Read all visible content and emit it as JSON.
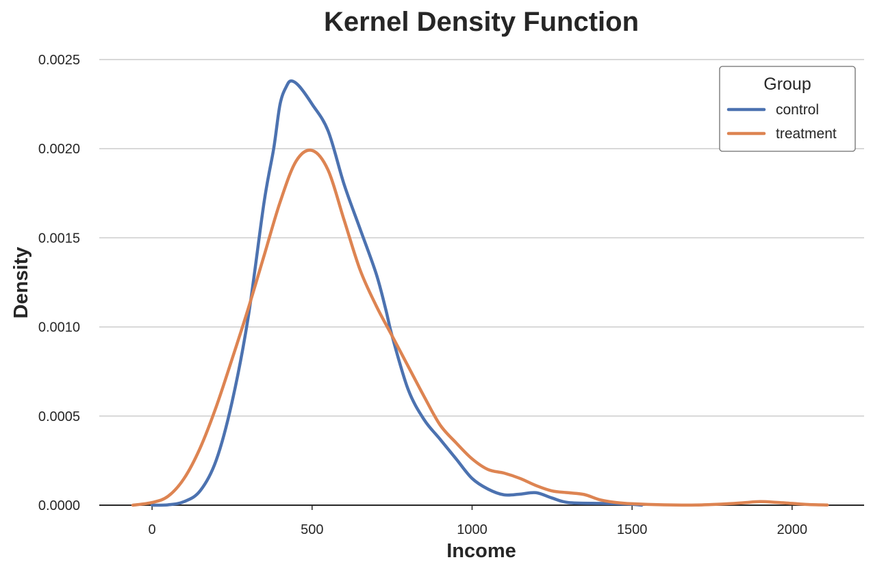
{
  "chart_data": {
    "type": "line",
    "chart_kind": "kernel density estimate",
    "title": "Kernel Density Function",
    "xlabel": "Income",
    "ylabel": "Density",
    "xlim": [
      -165,
      2225
    ],
    "ylim": [
      0,
      0.0025
    ],
    "x_ticks": [
      0,
      500,
      1000,
      1500,
      2000
    ],
    "x_tick_labels": [
      "0",
      "500",
      "1000",
      "1500",
      "2000"
    ],
    "y_ticks": [
      0,
      0.0005,
      0.001,
      0.0015,
      0.002,
      0.0025
    ],
    "y_tick_labels": [
      "0.0000",
      "0.0005",
      "0.0010",
      "0.0015",
      "0.0020",
      "0.0025"
    ],
    "grid": "horizontal",
    "legend": {
      "title": "Group",
      "placement": "top-right"
    },
    "series": [
      {
        "name": "control",
        "color": "#4c72b0",
        "points": [
          [
            0,
            0.0
          ],
          [
            50,
            2e-06
          ],
          [
            100,
            2e-05
          ],
          [
            150,
            8e-05
          ],
          [
            200,
            0.00025
          ],
          [
            250,
            0.00058
          ],
          [
            300,
            0.00105
          ],
          [
            350,
            0.0017
          ],
          [
            380,
            0.002
          ],
          [
            400,
            0.00225
          ],
          [
            420,
            0.00235
          ],
          [
            435,
            0.00238
          ],
          [
            460,
            0.00235
          ],
          [
            500,
            0.00225
          ],
          [
            550,
            0.0021
          ],
          [
            600,
            0.0018
          ],
          [
            650,
            0.00155
          ],
          [
            700,
            0.0013
          ],
          [
            730,
            0.0011
          ],
          [
            750,
            0.00095
          ],
          [
            800,
            0.00065
          ],
          [
            850,
            0.00048
          ],
          [
            900,
            0.00037
          ],
          [
            950,
            0.00026
          ],
          [
            1000,
            0.00015
          ],
          [
            1050,
            9e-05
          ],
          [
            1100,
            5.8e-05
          ],
          [
            1150,
            6.2e-05
          ],
          [
            1200,
            7e-05
          ],
          [
            1250,
            4e-05
          ],
          [
            1300,
            1.5e-05
          ],
          [
            1400,
            1e-05
          ],
          [
            1450,
            8e-06
          ],
          [
            1500,
            5e-06
          ],
          [
            1530,
            0.0
          ]
        ]
      },
      {
        "name": "treatment",
        "color": "#dd8452",
        "points": [
          [
            -60,
            0.0
          ],
          [
            0,
            1.5e-05
          ],
          [
            50,
            5e-05
          ],
          [
            100,
            0.00015
          ],
          [
            150,
            0.00032
          ],
          [
            200,
            0.00055
          ],
          [
            250,
            0.00082
          ],
          [
            300,
            0.0011
          ],
          [
            350,
            0.0014
          ],
          [
            400,
            0.0017
          ],
          [
            450,
            0.00193
          ],
          [
            500,
            0.00199
          ],
          [
            550,
            0.00188
          ],
          [
            600,
            0.0016
          ],
          [
            650,
            0.00132
          ],
          [
            700,
            0.00112
          ],
          [
            750,
            0.00095
          ],
          [
            800,
            0.00078
          ],
          [
            850,
            0.00061
          ],
          [
            900,
            0.00045
          ],
          [
            950,
            0.00035
          ],
          [
            1000,
            0.00026
          ],
          [
            1050,
            0.0002
          ],
          [
            1100,
            0.00018
          ],
          [
            1150,
            0.00015
          ],
          [
            1200,
            0.00011
          ],
          [
            1250,
            8e-05
          ],
          [
            1300,
            7e-05
          ],
          [
            1350,
            6e-05
          ],
          [
            1400,
            3e-05
          ],
          [
            1450,
            1.5e-05
          ],
          [
            1500,
            8e-06
          ],
          [
            1600,
            2e-06
          ],
          [
            1700,
            1e-06
          ],
          [
            1800,
            8e-06
          ],
          [
            1850,
            1.4e-05
          ],
          [
            1900,
            2e-05
          ],
          [
            1950,
            1.6e-05
          ],
          [
            2000,
            1e-05
          ],
          [
            2050,
            4e-06
          ],
          [
            2110,
            1e-06
          ]
        ]
      }
    ]
  }
}
